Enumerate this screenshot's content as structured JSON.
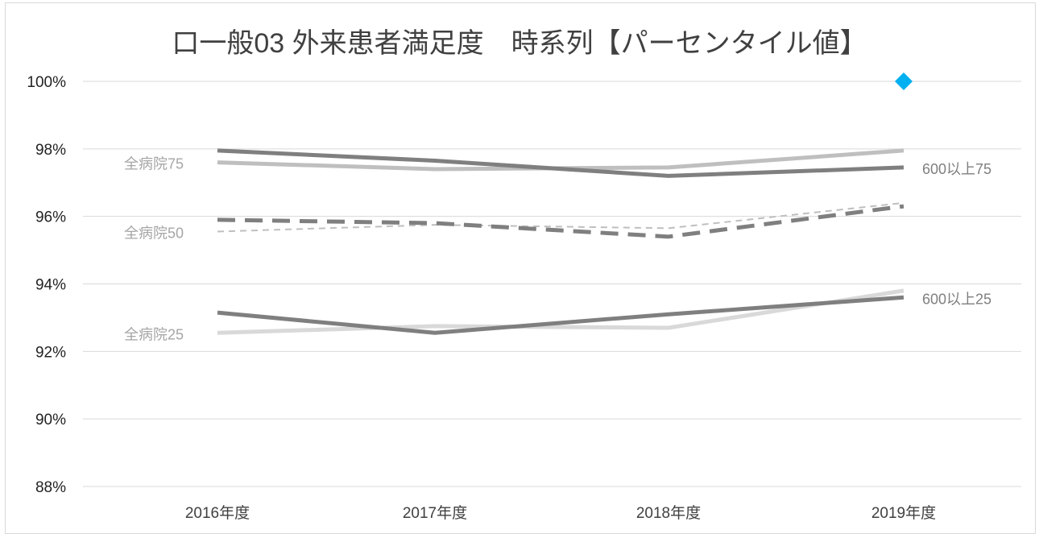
{
  "chart_data": {
    "type": "line",
    "title": "口一般03 外来患者満足度　時系列【パーセンタイル値】",
    "categories": [
      "2016年度",
      "2017年度",
      "2018年度",
      "2019年度"
    ],
    "y_ticks": [
      "88%",
      "90%",
      "92%",
      "94%",
      "96%",
      "98%",
      "100%"
    ],
    "ylim": [
      88,
      100
    ],
    "y_unit": "%",
    "grid": true,
    "series": [
      {
        "name": "全病院75",
        "values": [
          97.6,
          97.4,
          97.45,
          97.95
        ],
        "color": "#bfbfbf",
        "style": "solid",
        "width": 5,
        "label_at": "start"
      },
      {
        "name": "600以上75",
        "values": [
          97.95,
          97.65,
          97.2,
          97.45
        ],
        "color": "#7f7f7f",
        "style": "solid",
        "width": 5,
        "label_at": "end"
      },
      {
        "name": "全病院50",
        "values": [
          95.55,
          95.75,
          95.65,
          96.4
        ],
        "color": "#bfbfbf",
        "style": "dashed-thin",
        "width": 2,
        "label_at": "start"
      },
      {
        "name": "",
        "values": [
          95.9,
          95.8,
          95.4,
          96.3
        ],
        "color": "#7f7f7f",
        "style": "dashed-thick",
        "width": 5,
        "label_at": "none"
      },
      {
        "name": "全病院25",
        "values": [
          92.55,
          92.75,
          92.7,
          93.8
        ],
        "color": "#d9d9d9",
        "style": "solid",
        "width": 5,
        "label_at": "start"
      },
      {
        "name": "600以上25",
        "values": [
          93.15,
          92.55,
          93.1,
          93.6
        ],
        "color": "#7f7f7f",
        "style": "solid",
        "width": 5,
        "label_at": "end"
      }
    ],
    "markers": [
      {
        "category": "2019年度",
        "value": 100,
        "shape": "diamond",
        "color": "#00b0f0"
      }
    ]
  }
}
